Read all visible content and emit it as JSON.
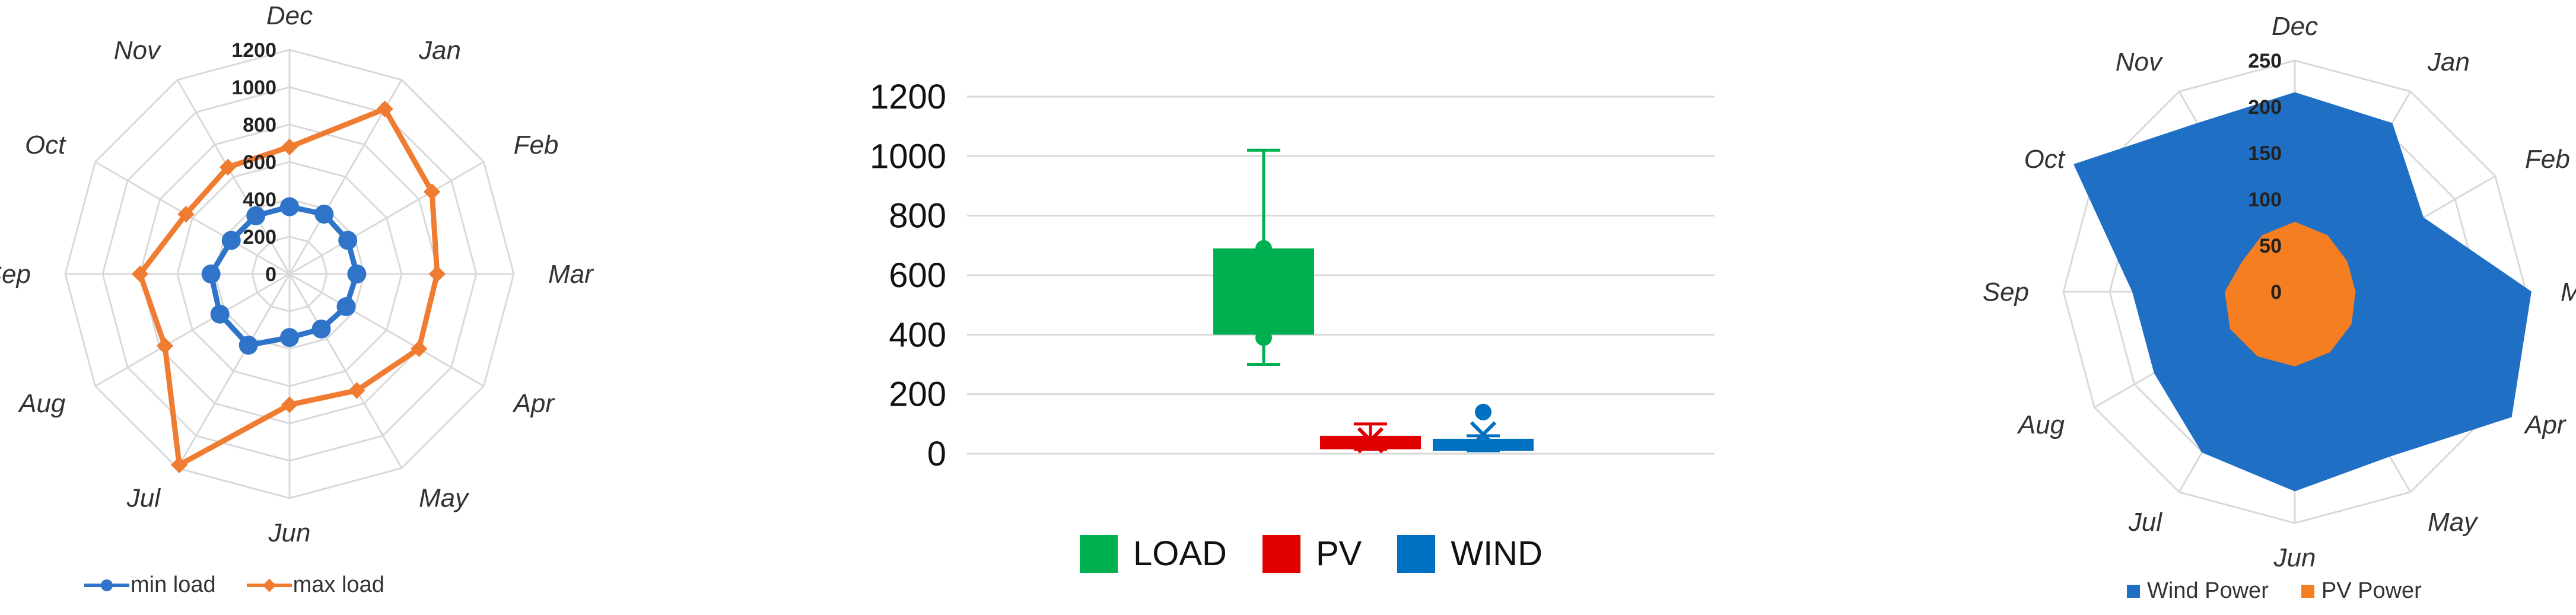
{
  "chart_data": [
    {
      "type": "radar",
      "categories": [
        "Dec",
        "Jan",
        "Feb",
        "Mar",
        "Apr",
        "May",
        "Jun",
        "Jul",
        "Aug",
        "Sep",
        "Oct",
        "Nov"
      ],
      "r_ticks": [
        "0",
        "200",
        "400",
        "600",
        "800",
        "1000",
        "1200"
      ],
      "rlim": [
        0,
        1200
      ],
      "grid": true,
      "legend_position": "bottom",
      "series": [
        {
          "name": "min load",
          "color": "#2F74C8",
          "values": [
            360,
            370,
            360,
            360,
            350,
            340,
            340,
            440,
            430,
            420,
            360,
            360
          ]
        },
        {
          "name": "max load",
          "color": "#F07C32",
          "values": [
            680,
            1020,
            880,
            790,
            800,
            720,
            700,
            1180,
            770,
            800,
            640,
            660
          ]
        }
      ]
    },
    {
      "type": "box",
      "categories": [
        "LOAD",
        "PV",
        "WIND"
      ],
      "ylim": [
        0,
        1200
      ],
      "y_ticks": [
        "0",
        "200",
        "400",
        "600",
        "800",
        "1000",
        "1200"
      ],
      "grid": true,
      "legend_position": "bottom",
      "boxes": [
        {
          "name": "LOAD",
          "color": "#00B050",
          "min": 300,
          "q1": 400,
          "median": 600,
          "q3": 690,
          "max": 1020,
          "mean": 560,
          "outliers": [
            690,
            390
          ]
        },
        {
          "name": "PV",
          "color": "#E00000",
          "min": 15,
          "q1": 15,
          "median": 40,
          "q3": 60,
          "max": 100,
          "mean": 45,
          "outliers": []
        },
        {
          "name": "WIND",
          "color": "#0070C0",
          "min": 10,
          "q1": 10,
          "median": 30,
          "q3": 50,
          "max": 60,
          "mean": 65,
          "outliers": [
            140
          ]
        }
      ]
    },
    {
      "type": "radar",
      "style": "filled",
      "categories": [
        "Dec",
        "Jan",
        "Feb",
        "Mar",
        "Apr",
        "May",
        "Jun",
        "Jul",
        "Aug",
        "Sep",
        "Oct",
        "Nov"
      ],
      "r_ticks": [
        "0",
        "50",
        "100",
        "150",
        "200",
        "250"
      ],
      "rlim": [
        0,
        250
      ],
      "grid": true,
      "legend_position": "bottom",
      "series": [
        {
          "name": "Wind Power",
          "color": "#1F6FC5",
          "values": [
            215,
            210,
            160,
            255,
            270,
            205,
            215,
            200,
            175,
            175,
            275,
            210
          ]
        },
        {
          "name": "PV Power",
          "color": "#F47E20",
          "values": [
            75,
            70,
            65,
            65,
            70,
            75,
            80,
            80,
            80,
            75,
            65,
            70
          ]
        }
      ]
    }
  ]
}
